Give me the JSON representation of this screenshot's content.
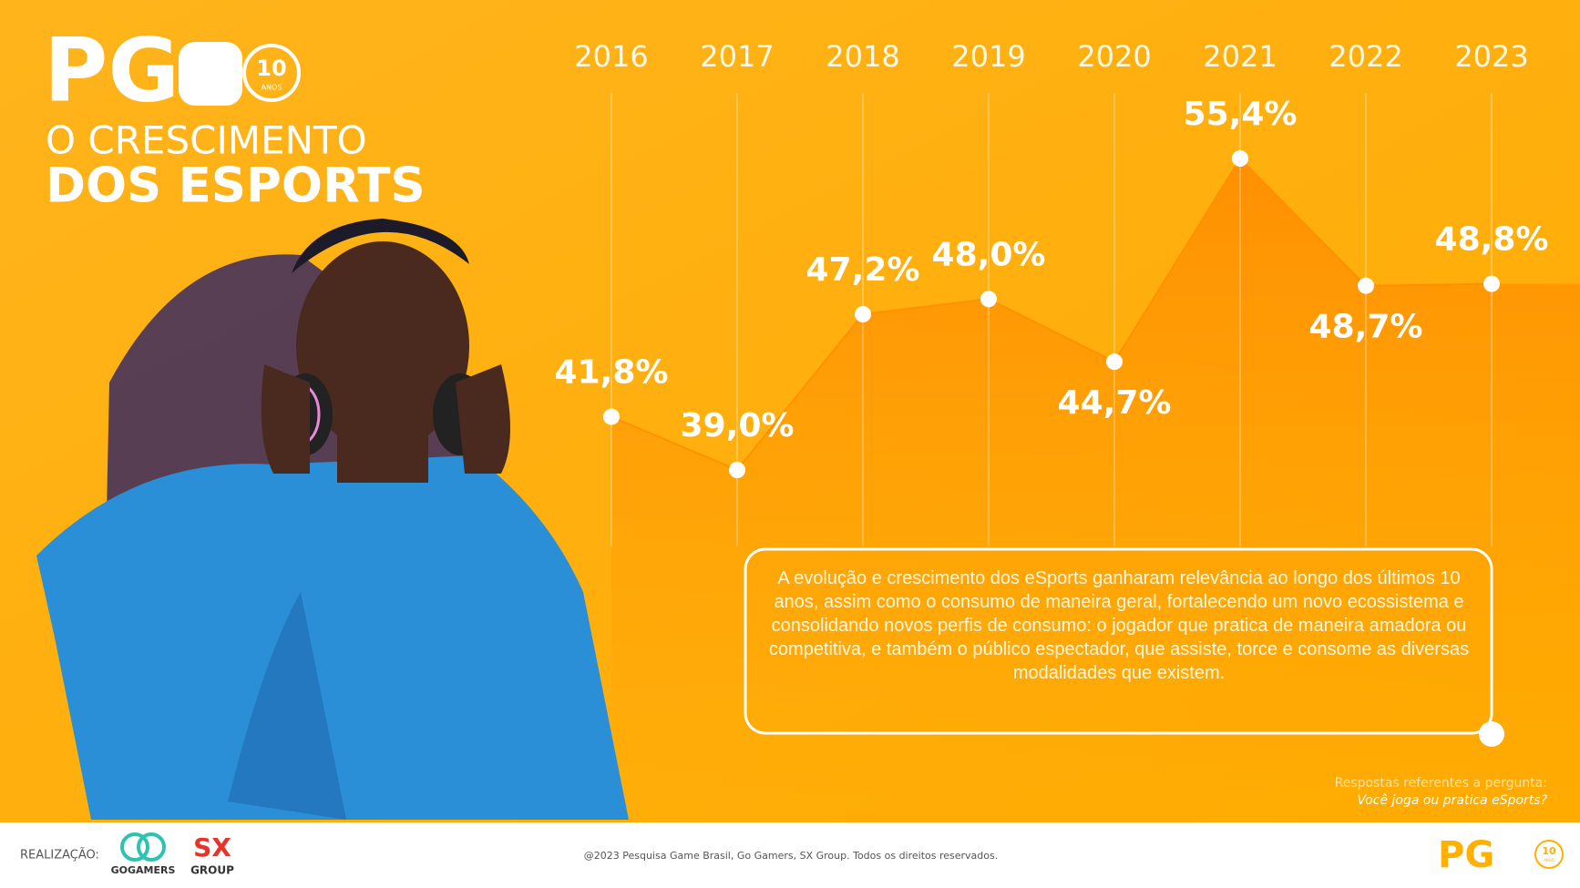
{
  "header": {
    "logo": "PG",
    "badge": "10",
    "badge_sub": "ANOS"
  },
  "chart_data": {
    "type": "area",
    "title": [
      "O CRESCIMENTO",
      "DOS ESPORTS"
    ],
    "categories": [
      "2016",
      "2017",
      "2018",
      "2019",
      "2020",
      "2021",
      "2022",
      "2023"
    ],
    "values": [
      41.8,
      39.0,
      47.2,
      48.0,
      44.7,
      55.4,
      48.7,
      48.8
    ],
    "value_labels": [
      "41,8%",
      "39,0%",
      "47,2%",
      "48,0%",
      "44,7%",
      "55,4%",
      "48,7%",
      "48,8%"
    ],
    "color": "#ff9000",
    "point_color": "#ffffff"
  },
  "description": "A evolução e crescimento dos eSports ganharam relevância ao longo dos últimos 10 anos, assim como o consumo de maneira geral, fortalecendo um novo ecossistema e consolidando novos perfis de consumo: o jogador que pratica de maneira amadora ou competitiva, e também o público espectador, que assiste, torce e consome as diversas modalidades que existem.",
  "note": {
    "text": "Respostas referentes a pergunta:",
    "question": "Você joga ou pratica eSports?"
  },
  "footer": {
    "label": "REALIZAÇÃO:",
    "sponsor_1": "GOGAMERS",
    "sponsor_2": "SX",
    "sponsor_2_sub": "GROUP",
    "copyright": "@2023 Pesquisa Game Brasil, Go Gamers, SX Group. Todos os direitos reservados."
  }
}
